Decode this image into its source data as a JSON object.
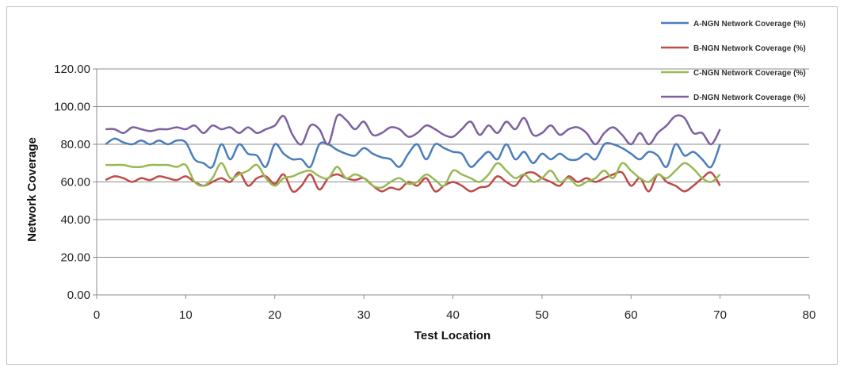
{
  "chart_data": {
    "type": "line",
    "title": "",
    "xlabel": "Test Location",
    "ylabel": "Network Coverage",
    "xlim": [
      0,
      80
    ],
    "ylim": [
      0,
      120
    ],
    "x_ticks": [
      "0",
      "10",
      "20",
      "30",
      "40",
      "50",
      "60",
      "70",
      "80"
    ],
    "y_ticks": [
      "0.00",
      "20.00",
      "40.00",
      "60.00",
      "80.00",
      "100.00",
      "120.00"
    ],
    "grid": "horizontal",
    "legend_position": "top-right",
    "x": [
      1,
      2,
      3,
      4,
      5,
      6,
      7,
      8,
      9,
      10,
      11,
      12,
      13,
      14,
      15,
      16,
      17,
      18,
      19,
      20,
      21,
      22,
      23,
      24,
      25,
      26,
      27,
      28,
      29,
      30,
      31,
      32,
      33,
      34,
      35,
      36,
      37,
      38,
      39,
      40,
      41,
      42,
      43,
      44,
      45,
      46,
      47,
      48,
      49,
      50,
      51,
      52,
      53,
      54,
      55,
      56,
      57,
      58,
      59,
      60,
      61,
      62,
      63,
      64,
      65,
      66,
      67,
      68,
      69,
      70
    ],
    "series": [
      {
        "name": "A-NGN Network Coverage (%)",
        "color": "#4a7ebb",
        "values": [
          80,
          83,
          81,
          80,
          82,
          80,
          82,
          80,
          82,
          81,
          72,
          70,
          68,
          80,
          72,
          80,
          75,
          74,
          68,
          80,
          75,
          72,
          72,
          68,
          80,
          80,
          77,
          75,
          74,
          78,
          75,
          73,
          72,
          68,
          75,
          80,
          72,
          80,
          78,
          76,
          75,
          68,
          72,
          76,
          72,
          80,
          72,
          76,
          70,
          75,
          72,
          75,
          72,
          72,
          75,
          72,
          80,
          80,
          78,
          75,
          72,
          76,
          74,
          68,
          80,
          74,
          76,
          72,
          68,
          80
        ]
      },
      {
        "name": "B-NGN Network Coverage (%)",
        "color": "#be4b48",
        "values": [
          61,
          63,
          62,
          60,
          62,
          61,
          63,
          62,
          61,
          63,
          60,
          58,
          60,
          62,
          60,
          65,
          58,
          62,
          63,
          59,
          64,
          55,
          58,
          64,
          56,
          62,
          64,
          62,
          61,
          62,
          58,
          55,
          57,
          56,
          60,
          58,
          62,
          55,
          58,
          60,
          58,
          55,
          57,
          58,
          63,
          60,
          58,
          64,
          65,
          62,
          60,
          58,
          63,
          60,
          62,
          60,
          62,
          64,
          65,
          58,
          62,
          55,
          64,
          60,
          58,
          55,
          58,
          62,
          65,
          58
        ]
      },
      {
        "name": "C-NGN Network Coverage (%)",
        "color": "#98b954",
        "values": [
          69,
          69,
          69,
          68,
          68,
          69,
          69,
          69,
          68,
          69,
          60,
          58,
          62,
          70,
          62,
          64,
          66,
          69,
          62,
          58,
          62,
          63,
          65,
          66,
          63,
          62,
          68,
          62,
          64,
          62,
          58,
          57,
          60,
          62,
          59,
          60,
          64,
          61,
          58,
          66,
          64,
          62,
          60,
          64,
          70,
          66,
          62,
          64,
          60,
          62,
          66,
          60,
          62,
          58,
          60,
          62,
          66,
          62,
          70,
          66,
          62,
          60,
          64,
          62,
          66,
          70,
          67,
          62,
          60,
          64
        ]
      },
      {
        "name": "D-NGN Network Coverage (%)",
        "color": "#7d60a0",
        "values": [
          88,
          88,
          86,
          89,
          88,
          87,
          88,
          88,
          89,
          88,
          90,
          86,
          90,
          88,
          89,
          86,
          89,
          86,
          88,
          90,
          95,
          85,
          80,
          90,
          88,
          80,
          95,
          93,
          88,
          92,
          85,
          86,
          89,
          88,
          84,
          86,
          90,
          88,
          85,
          84,
          88,
          92,
          85,
          90,
          86,
          92,
          88,
          94,
          85,
          86,
          90,
          85,
          88,
          89,
          86,
          80,
          86,
          89,
          85,
          80,
          86,
          80,
          86,
          90,
          95,
          94,
          86,
          86,
          80,
          88
        ]
      }
    ]
  }
}
